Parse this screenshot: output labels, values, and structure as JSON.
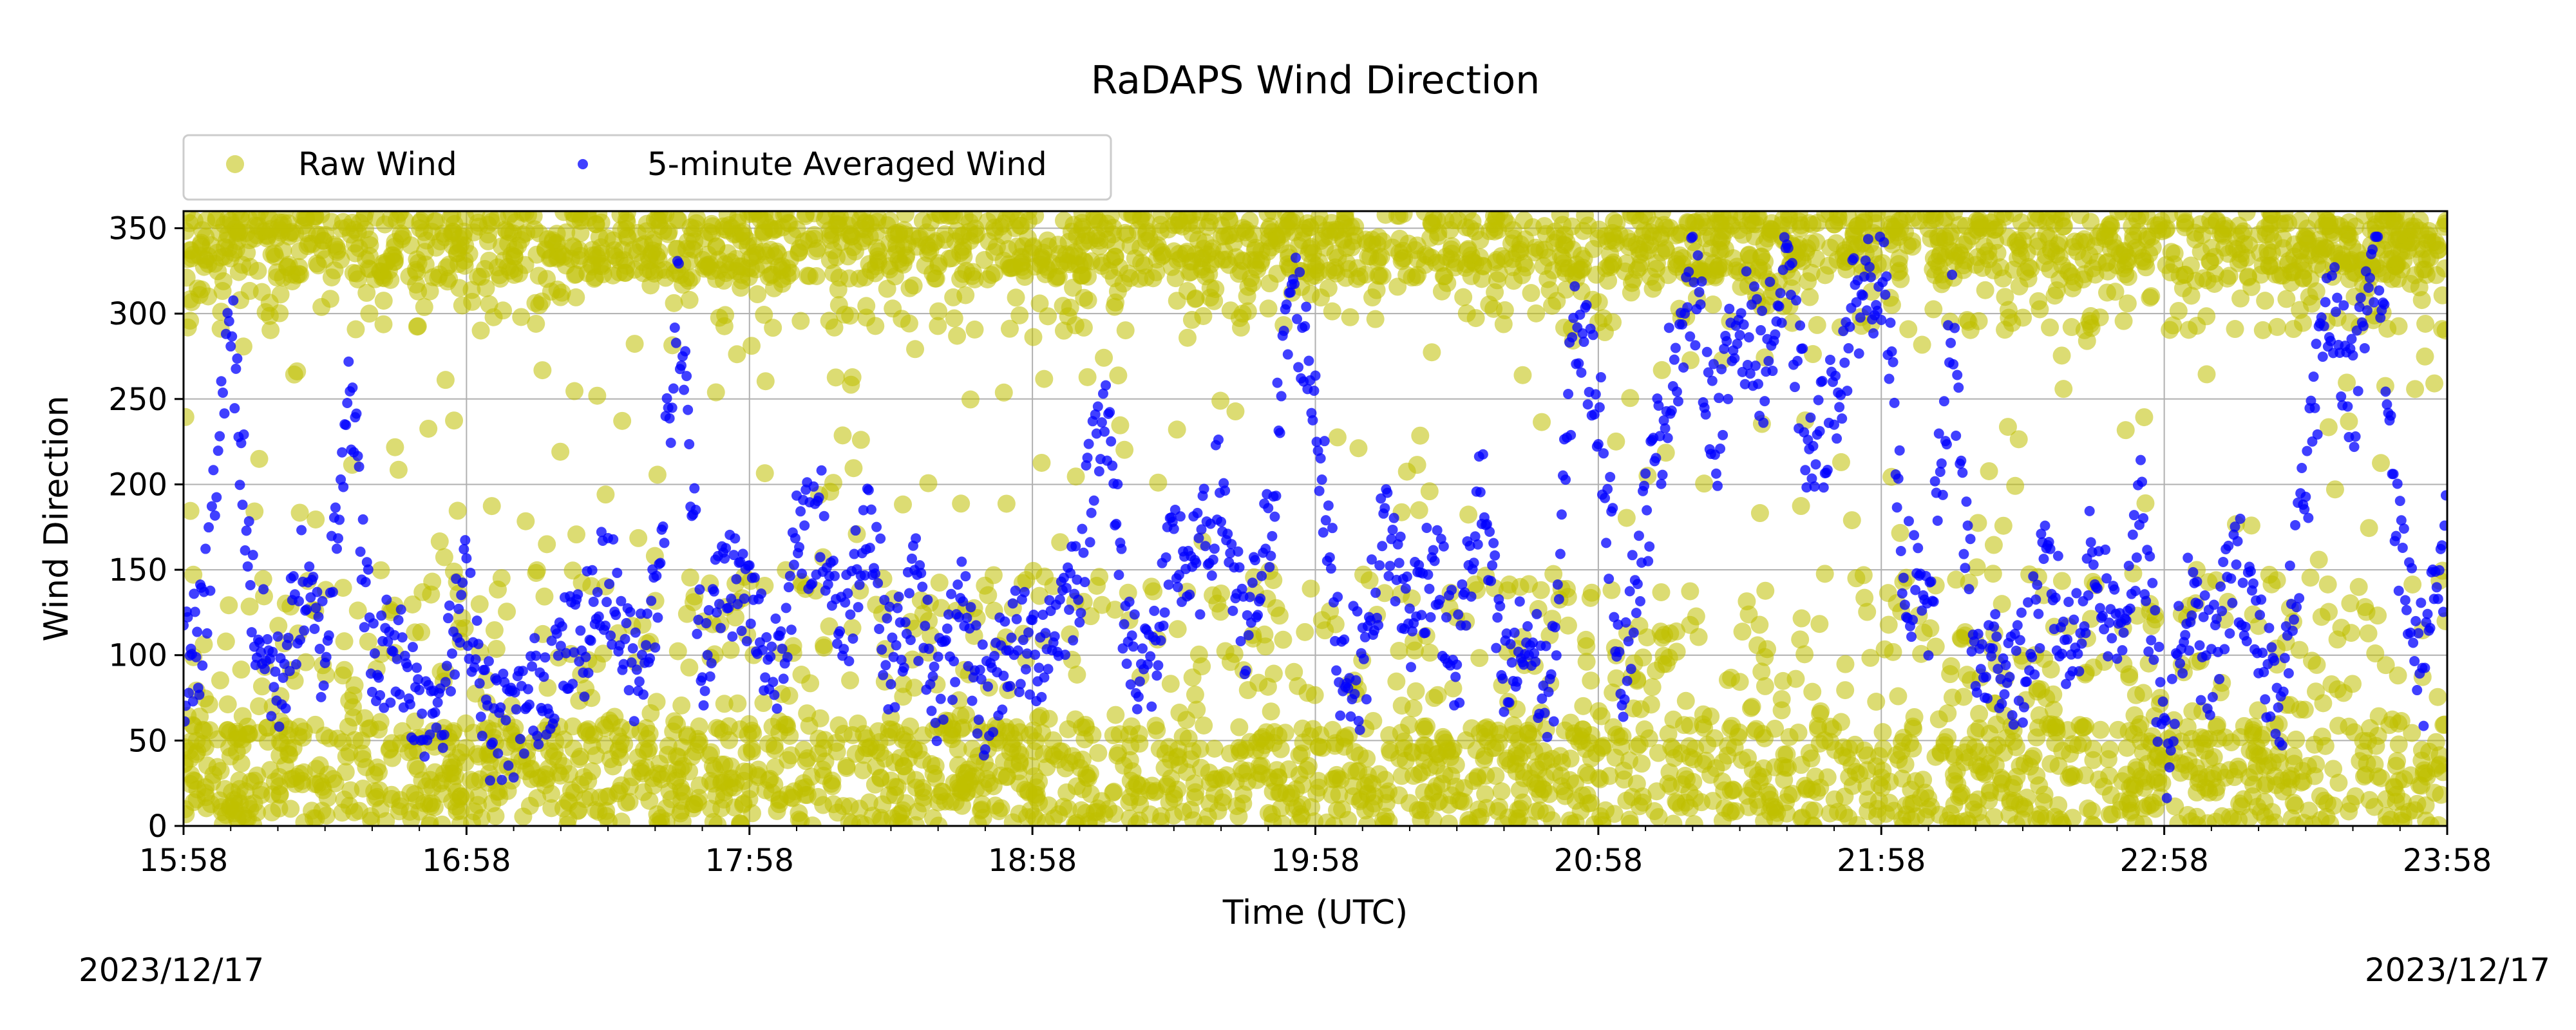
{
  "chart_data": {
    "type": "scatter",
    "title": "RaDAPS Wind Direction",
    "xlabel": "Time (UTC)",
    "ylabel": "Wind Direction",
    "x_range": [
      "15:58",
      "23:58"
    ],
    "x_ticks": [
      "15:58",
      "16:58",
      "17:58",
      "18:58",
      "19:58",
      "20:58",
      "21:58",
      "22:58",
      "23:58"
    ],
    "ylim": [
      0,
      360
    ],
    "y_ticks": [
      0,
      50,
      100,
      150,
      200,
      250,
      300,
      350
    ],
    "grid": true,
    "legend_position": "top-left",
    "series": [
      {
        "name": "Raw Wind",
        "marker": "large-circle",
        "color": "#bfbf00",
        "opacity": 0.55,
        "x_unit": "minutes since 15:58",
        "y_band_low": [
          0,
          360
        ],
        "note_points": "dense cloud covering 0-360 with concentrations at 0-150 and 300-360"
      },
      {
        "name": "5-minute Averaged Wind",
        "marker": "small-dot",
        "color": "#0000ff",
        "opacity": 0.75,
        "x": [
          "15:58",
          "16:02",
          "16:08",
          "16:13",
          "16:18",
          "16:23",
          "16:28",
          "16:33",
          "16:38",
          "16:43",
          "16:48",
          "16:53",
          "16:58",
          "17:03",
          "17:08",
          "17:13",
          "17:18",
          "17:23",
          "17:28",
          "17:33",
          "17:38",
          "17:43",
          "17:48",
          "17:53",
          "17:58",
          "18:03",
          "18:08",
          "18:13",
          "18:18",
          "18:23",
          "18:28",
          "18:33",
          "18:38",
          "18:43",
          "18:48",
          "18:53",
          "18:58",
          "19:03",
          "19:08",
          "19:13",
          "19:18",
          "19:23",
          "19:28",
          "19:33",
          "19:38",
          "19:43",
          "19:48",
          "19:53",
          "19:58",
          "20:03",
          "20:08",
          "20:13",
          "20:18",
          "20:23",
          "20:28",
          "20:33",
          "20:38",
          "20:43",
          "20:48",
          "20:53",
          "20:58",
          "21:03",
          "21:08",
          "21:13",
          "21:18",
          "21:23",
          "21:28",
          "21:33",
          "21:38",
          "21:43",
          "21:48",
          "21:53",
          "21:58",
          "22:03",
          "22:08",
          "22:13",
          "22:18",
          "22:23",
          "22:28",
          "22:33",
          "22:38",
          "22:43",
          "22:48",
          "22:53",
          "22:58",
          "23:03",
          "23:08",
          "23:13",
          "23:18",
          "23:23",
          "23:28",
          "23:33",
          "23:38",
          "23:43",
          "23:48",
          "23:53",
          "23:58"
        ],
        "values": [
          95,
          110,
          300,
          120,
          80,
          140,
          100,
          270,
          90,
          110,
          70,
          80,
          140,
          60,
          60,
          80,
          100,
          110,
          150,
          90,
          130,
          310,
          100,
          150,
          130,
          90,
          160,
          180,
          110,
          190,
          90,
          140,
          80,
          120,
          70,
          110,
          100,
          120,
          150,
          260,
          110,
          90,
          160,
          150,
          200,
          100,
          170,
          320,
          250,
          100,
          90,
          180,
          120,
          160,
          90,
          200,
          80,
          110,
          70,
          300,
          250,
          90,
          180,
          260,
          320,
          230,
          300,
          270,
          320,
          210,
          250,
          310,
          330,
          150,
          120,
          290,
          90,
          100,
          90,
          150,
          100,
          160,
          110,
          180,
          40,
          130,
          90,
          160,
          100,
          80,
          200,
          320,
          250,
          340,
          160,
          90,
          170
        ]
      }
    ]
  },
  "dates": {
    "left": "2023/12/17",
    "right": "2023/12/17"
  }
}
